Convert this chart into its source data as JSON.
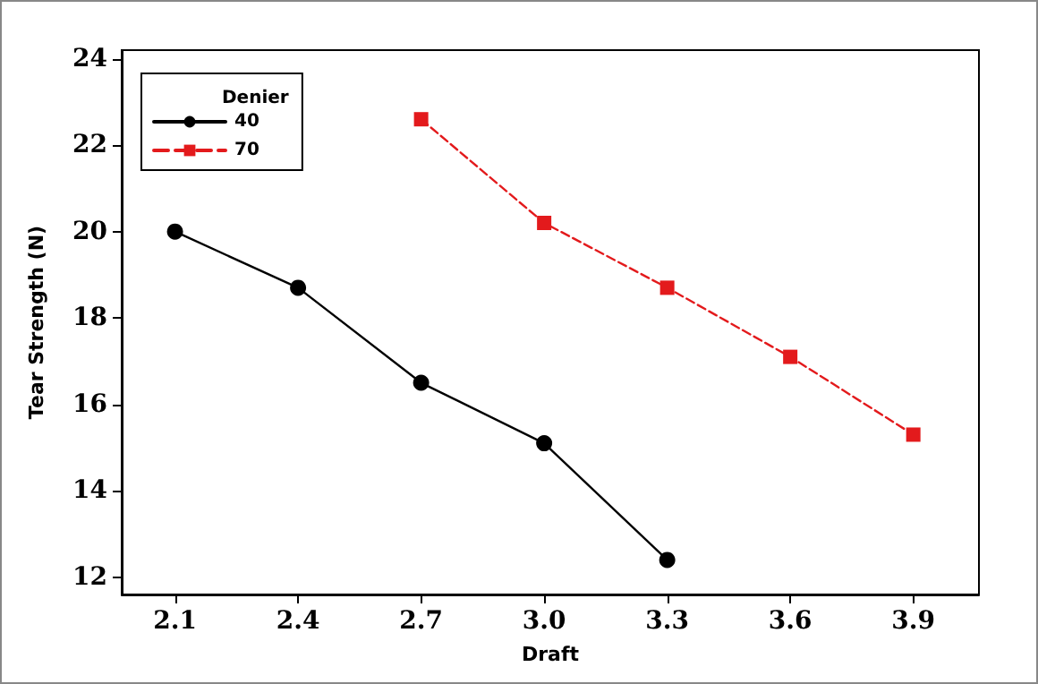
{
  "chart_data": {
    "type": "line",
    "xlabel": "Draft",
    "ylabel": "Tear Strength (N)",
    "legend_title": "Denier",
    "series": [
      {
        "name": "40",
        "color": "#000000",
        "marker": "circle",
        "line_style": "solid",
        "x": [
          2.1,
          2.4,
          2.7,
          3.0,
          3.3
        ],
        "values": [
          20.0,
          18.7,
          16.5,
          15.1,
          12.4
        ]
      },
      {
        "name": "70",
        "color": "#e31a1c",
        "marker": "square",
        "line_style": "dashed",
        "x": [
          2.7,
          3.0,
          3.3,
          3.6,
          3.9
        ],
        "values": [
          22.6,
          20.2,
          18.7,
          17.1,
          15.3
        ]
      }
    ],
    "xlim": [
      1.97,
      4.06
    ],
    "xticks": [
      {
        "value": 2.1,
        "label": "2.1"
      },
      {
        "value": 2.4,
        "label": "2.4"
      },
      {
        "value": 2.7,
        "label": "2.7"
      },
      {
        "value": 3.0,
        "label": "3.0"
      },
      {
        "value": 3.3,
        "label": "3.3"
      },
      {
        "value": 3.6,
        "label": "3.6"
      },
      {
        "value": 3.9,
        "label": "3.9"
      }
    ],
    "ylim": [
      11.6,
      24.2
    ],
    "yticks": [
      12,
      14,
      16,
      18,
      20,
      22,
      24
    ],
    "grid": false,
    "legend": "top left"
  }
}
